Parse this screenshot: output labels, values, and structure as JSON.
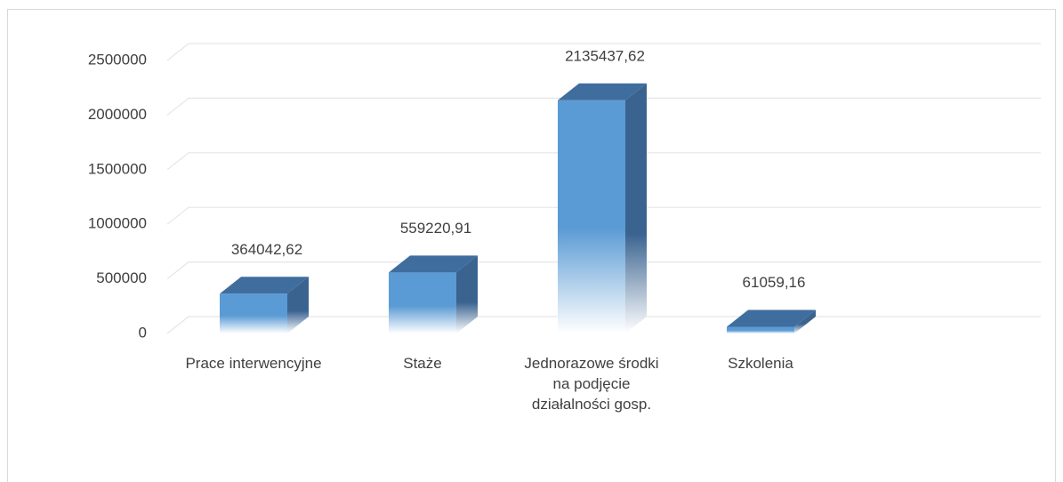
{
  "chart_data": {
    "type": "bar3d",
    "categories": [
      "Prace interwencyjne",
      "Staże",
      "Jednorazowe środki na podjęcie działalności gosp.",
      "Szkolenia"
    ],
    "values": [
      364042.62,
      559220.91,
      2135437.62,
      61059.16
    ],
    "value_labels": [
      "364042,62",
      "559220,91",
      "2135437,62",
      "61059,16"
    ],
    "color": "#5b9bd5",
    "ylim": [
      0,
      2500000
    ],
    "yticks": [
      0,
      500000,
      1000000,
      1500000,
      2000000,
      2500000
    ],
    "grid": true
  }
}
